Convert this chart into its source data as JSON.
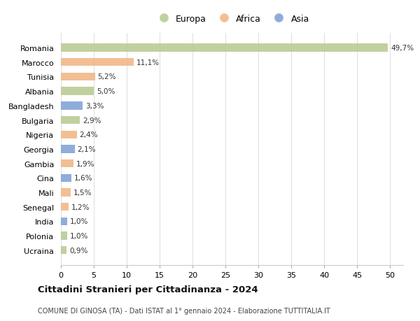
{
  "countries": [
    "Romania",
    "Marocco",
    "Tunisia",
    "Albania",
    "Bangladesh",
    "Bulgaria",
    "Nigeria",
    "Georgia",
    "Gambia",
    "Cina",
    "Mali",
    "Senegal",
    "India",
    "Polonia",
    "Ucraina"
  ],
  "values": [
    49.7,
    11.1,
    5.2,
    5.0,
    3.3,
    2.9,
    2.4,
    2.1,
    1.9,
    1.6,
    1.5,
    1.2,
    1.0,
    1.0,
    0.9
  ],
  "labels": [
    "49,7%",
    "11,1%",
    "5,2%",
    "5,0%",
    "3,3%",
    "2,9%",
    "2,4%",
    "2,1%",
    "1,9%",
    "1,6%",
    "1,5%",
    "1,2%",
    "1,0%",
    "1,0%",
    "0,9%"
  ],
  "continents": [
    "Europa",
    "Africa",
    "Africa",
    "Europa",
    "Asia",
    "Europa",
    "Africa",
    "Asia",
    "Africa",
    "Asia",
    "Africa",
    "Africa",
    "Asia",
    "Europa",
    "Europa"
  ],
  "colors": {
    "Europa": "#b5c98e",
    "Africa": "#f0b482",
    "Asia": "#7b9fd4"
  },
  "xlim": [
    0,
    52
  ],
  "xticks": [
    0,
    5,
    10,
    15,
    20,
    25,
    30,
    35,
    40,
    45,
    50
  ],
  "title": "Cittadini Stranieri per Cittadinanza - 2024",
  "subtitle": "COMUNE DI GINOSA (TA) - Dati ISTAT al 1° gennaio 2024 - Elaborazione TUTTITALIA.IT",
  "background_color": "#ffffff",
  "grid_color": "#dddddd",
  "bar_height": 0.55
}
